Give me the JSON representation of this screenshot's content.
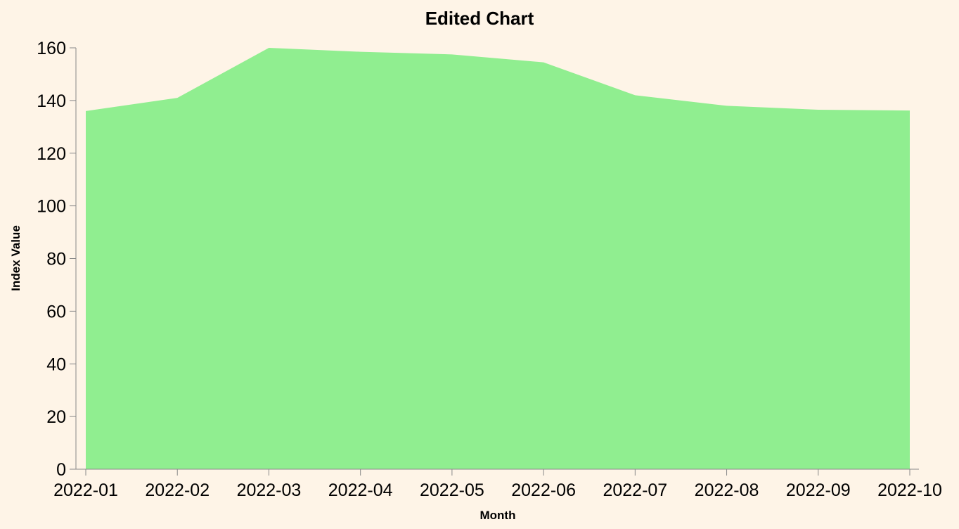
{
  "chart_data": {
    "type": "area",
    "title": "Edited Chart",
    "xlabel": "Month",
    "ylabel": "Index Value",
    "x": [
      "2022-01",
      "2022-02",
      "2022-03",
      "2022-04",
      "2022-05",
      "2022-06",
      "2022-07",
      "2022-08",
      "2022-09",
      "2022-10"
    ],
    "series": [
      {
        "values": [
          136,
          141,
          160,
          158.5,
          157.5,
          154.5,
          142,
          138,
          136.5,
          136.2
        ]
      }
    ],
    "ylim": [
      0,
      160
    ],
    "yticks": [
      "0",
      "20",
      "40",
      "60",
      "80",
      "100",
      "120",
      "140",
      "160"
    ],
    "grid": false,
    "legend": "none",
    "colors": {
      "background": "#fef4e7",
      "area": "#90ee90",
      "axis": "#888888"
    }
  }
}
